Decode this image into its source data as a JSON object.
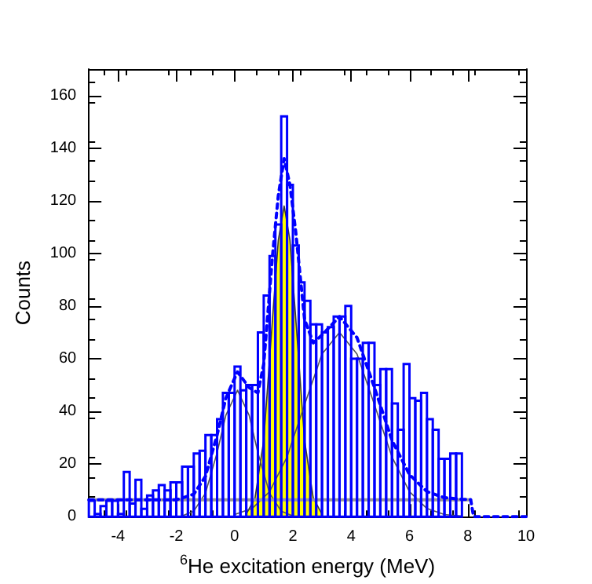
{
  "chart_data": {
    "type": "histogram",
    "xlabel": "$^{6}$He excitation energy (MeV)",
    "ylabel": "Counts",
    "xlim": [
      -5,
      10
    ],
    "ylim": [
      0,
      170
    ],
    "xticks": [
      -4,
      -2,
      0,
      2,
      4,
      6,
      8,
      10
    ],
    "yticks": [
      0,
      20,
      40,
      60,
      80,
      100,
      120,
      140,
      160
    ],
    "marker": "none",
    "series": [
      {
        "color": "#0000ff",
        "bins": [
          -5,
          -4.8,
          -4.6,
          -4.4,
          -4.2,
          -4,
          -3.8,
          -3.6,
          -3.4,
          -3.2,
          -3,
          -2.8,
          -2.6,
          -2.4,
          -2.2,
          -2,
          -1.8,
          -1.6,
          -1.4,
          -1.2,
          -1,
          -0.8,
          -0.6,
          -0.4,
          -0.2,
          0,
          0.2,
          0.4,
          0.6,
          0.8,
          1,
          1.2,
          1.4,
          1.6,
          1.8,
          2,
          2.2,
          2.4,
          2.6,
          2.8,
          3,
          3.2,
          3.4,
          3.6,
          3.8,
          4,
          4.2,
          4.4,
          4.6,
          4.8,
          5,
          5.2,
          5.4,
          5.6,
          5.8,
          6,
          6.2,
          6.4,
          6.6,
          6.8,
          7,
          7.2,
          7.4,
          7.6,
          7.8
        ],
        "values": [
          6,
          1,
          4,
          6,
          6,
          1,
          17,
          5,
          14,
          3,
          8,
          10,
          12,
          10,
          13,
          13,
          19,
          19,
          24,
          25,
          31,
          31,
          37,
          47,
          47,
          57,
          48,
          50,
          50,
          70,
          84,
          99,
          111,
          152,
          126,
          103,
          89,
          82,
          73,
          73,
          70,
          72,
          76,
          76,
          80,
          60,
          60,
          66,
          66,
          50,
          56,
          56,
          43,
          33,
          58,
          45,
          44,
          47,
          37,
          33,
          22,
          22,
          24,
          24
        ]
      },
      {
        "type": "area",
        "color": "#ffff00",
        "x": [
          0.4,
          0.7,
          1.0,
          1.3,
          1.5,
          1.7,
          1.9,
          2.1,
          2.4,
          2.7,
          3.0
        ],
        "values": [
          1,
          7,
          29,
          75,
          105,
          118,
          105,
          75,
          29,
          7,
          1
        ]
      },
      {
        "type": "line",
        "color": "#555555",
        "x": [
          -1.8,
          -1.4,
          -1.0,
          -0.6,
          -0.3,
          0.1,
          0.5,
          0.8,
          1.2,
          1.6,
          2.0
        ],
        "values": [
          0.3,
          2.1,
          8.9,
          24.3,
          38.5,
          48,
          38.5,
          24.3,
          8.9,
          2.1,
          0.3
        ]
      },
      {
        "type": "line",
        "color": "#555555",
        "x": [
          0,
          0.6,
          1.2,
          1.8,
          2.4,
          3.0,
          3.6,
          4.2,
          4.8,
          5.4,
          6.0,
          6.6,
          7.2,
          7.8
        ],
        "values": [
          0.8,
          3.1,
          9.5,
          22.7,
          42.5,
          61.8,
          70,
          61.8,
          42.5,
          22.7,
          9.5,
          3.1,
          0.8,
          0.2
        ]
      },
      {
        "type": "line",
        "color": "#999999",
        "x": [
          -5,
          8.1
        ],
        "values": [
          6.4,
          6.4
        ]
      },
      {
        "type": "line",
        "color": "#0000ff",
        "line_style": "dashed",
        "x": [
          -5,
          -2,
          -1.4,
          -1.0,
          -0.6,
          -0.3,
          0.1,
          0.5,
          0.8,
          1.0,
          1.3,
          1.5,
          1.7,
          1.9,
          2.1,
          2.4,
          2.7,
          3.0,
          3.6,
          4.2,
          4.8,
          5.4,
          6.0,
          6.6,
          7.2,
          7.8,
          8.1,
          8.2,
          10
        ],
        "values": [
          6.4,
          6.4,
          8.5,
          15.3,
          31,
          45,
          55,
          49,
          47,
          58,
          99,
          122,
          136,
          126,
          108,
          75,
          66,
          69,
          76,
          68,
          49,
          29,
          16,
          9.5,
          7.2,
          6.6,
          6.5,
          0,
          0
        ]
      }
    ]
  }
}
